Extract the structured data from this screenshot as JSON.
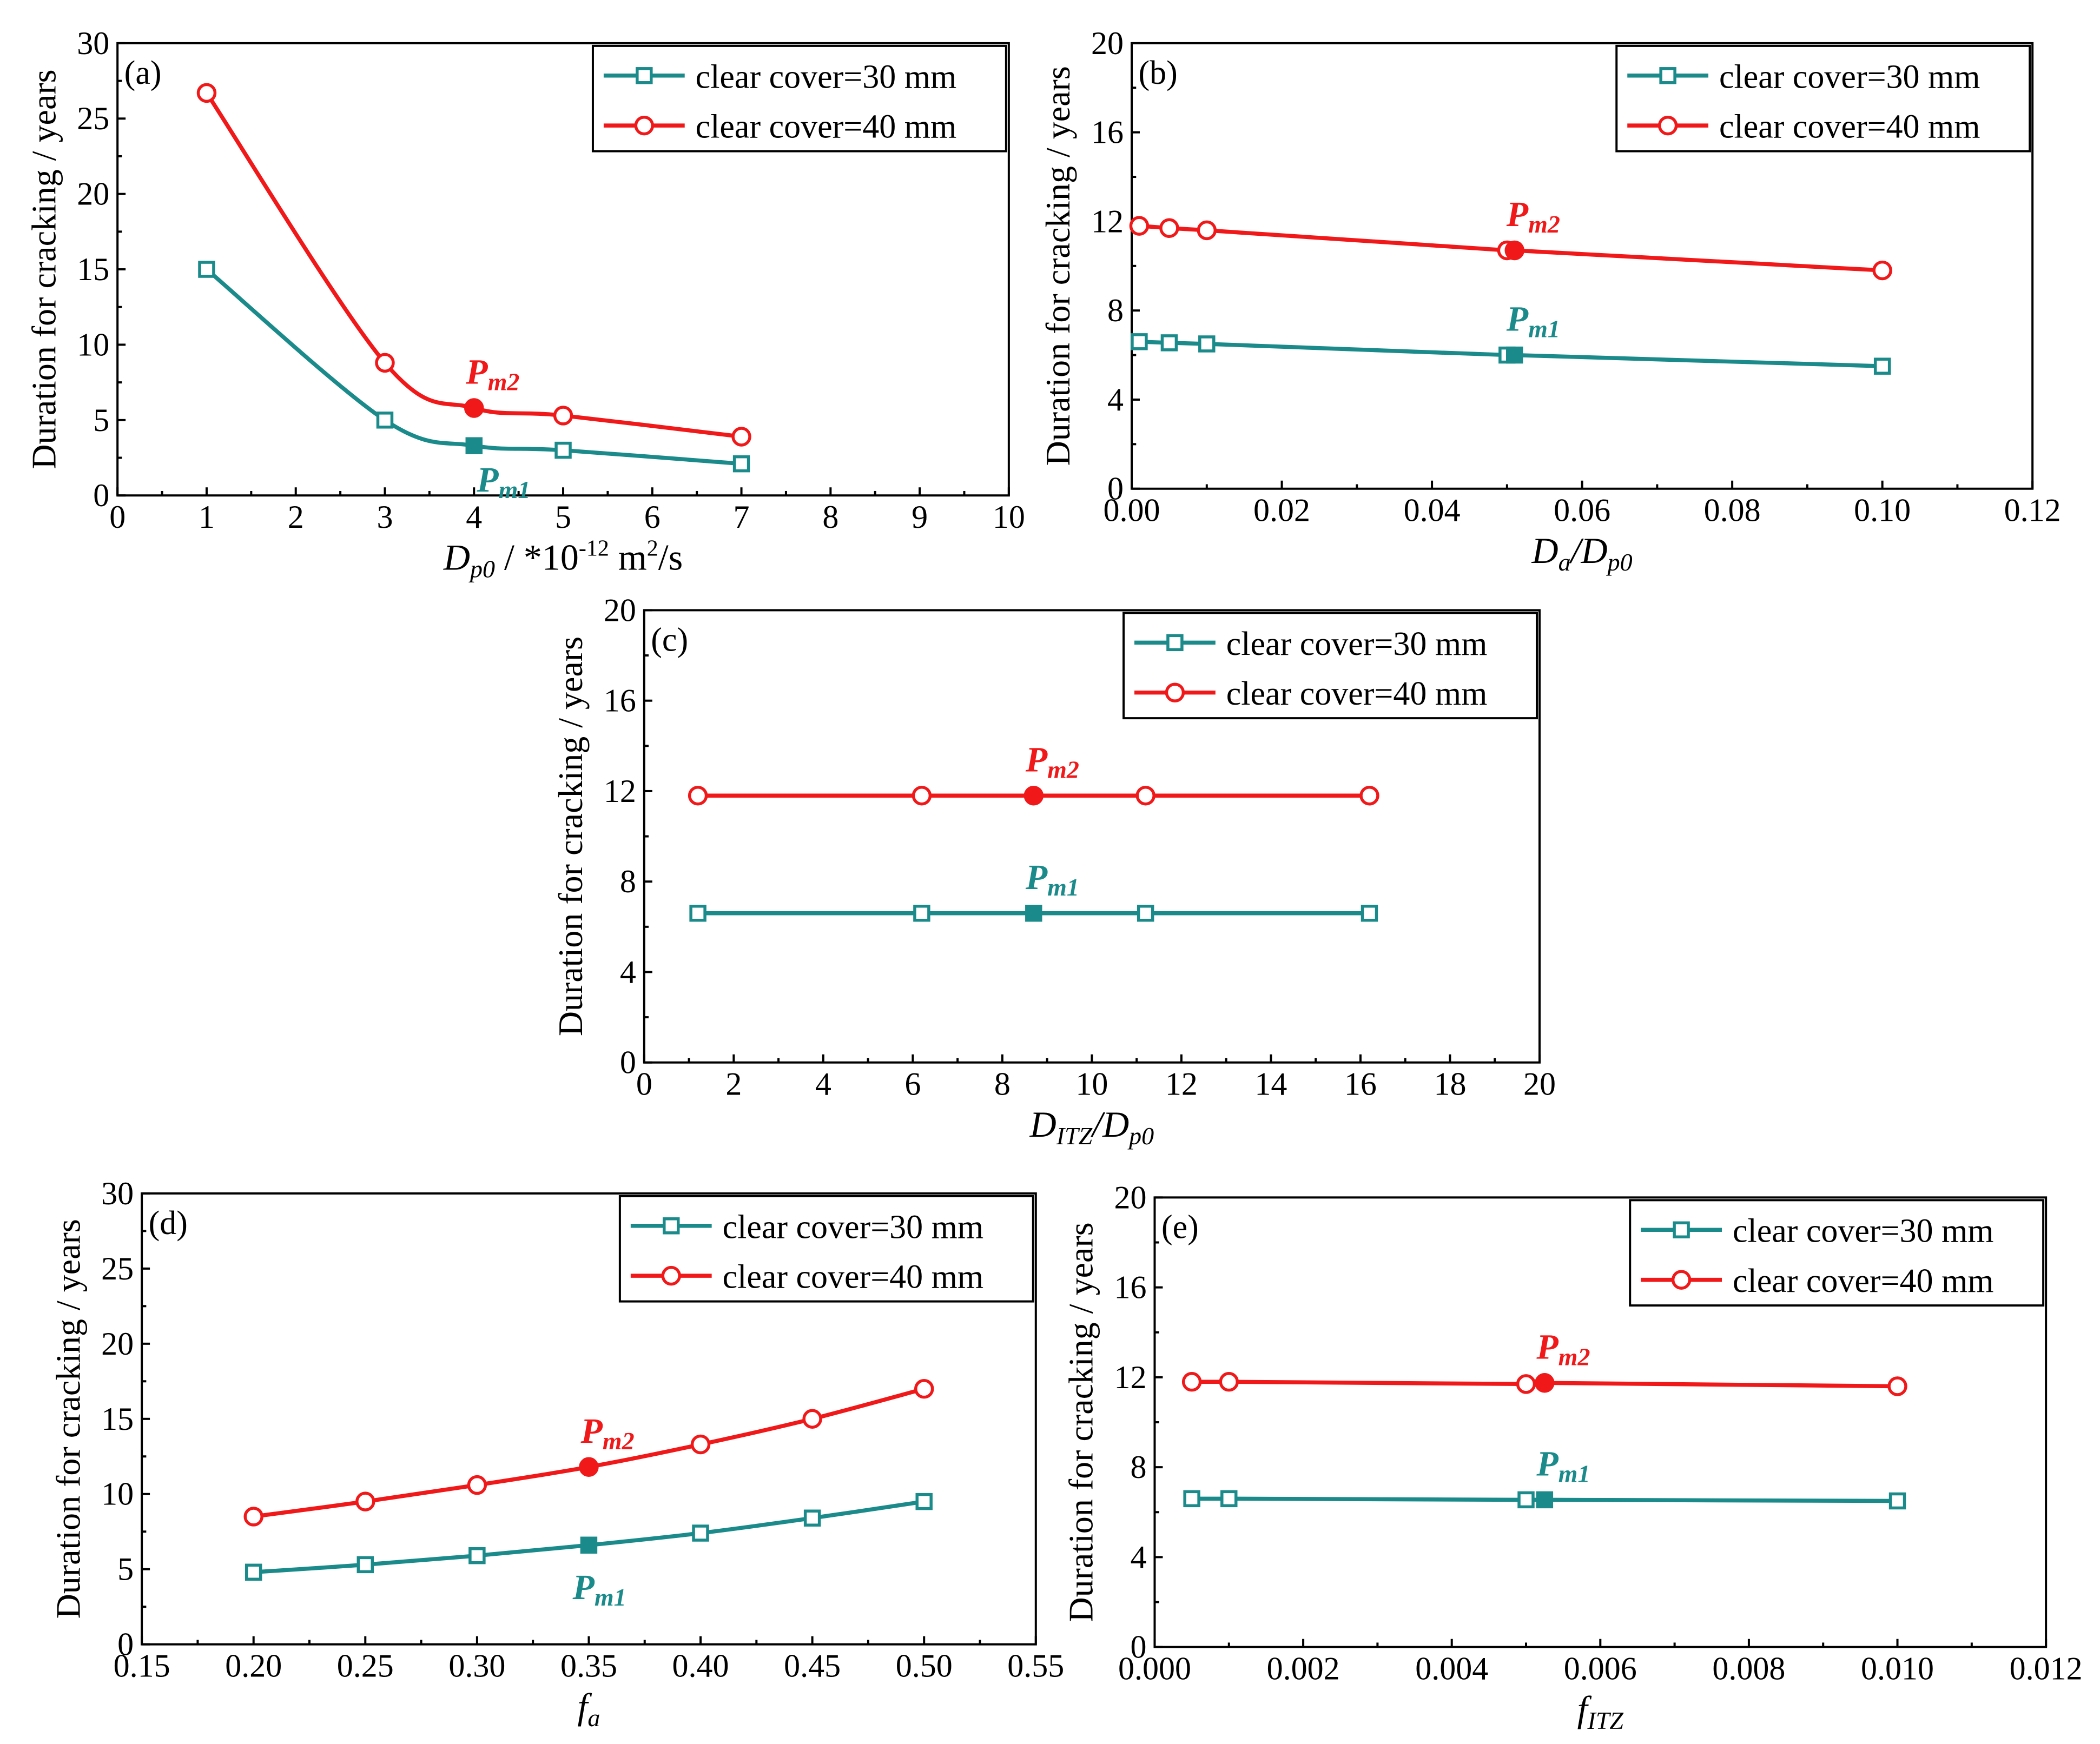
{
  "colors": {
    "teal": "#1a8a8a",
    "red": "#f01818"
  },
  "legend": {
    "s30": "clear cover=30 mm",
    "s40": "clear cover=40 mm"
  },
  "marker_labels": {
    "main": "P",
    "sub1": "m1",
    "sub2": "m2"
  },
  "chart_data": [
    {
      "id": "a",
      "type": "line",
      "smooth": true,
      "panel_label": "(a)",
      "ylabel": "Duration for cracking / years",
      "xlabel": {
        "main": "D",
        "sub": "p0",
        "rest": " / *10",
        "sup": "-12",
        "unit": " m",
        "unit_sup": "2",
        "unit_tail": "/s"
      },
      "xlim": [
        0,
        10
      ],
      "ylim": [
        0,
        30
      ],
      "xticks": [
        0,
        1,
        2,
        3,
        4,
        5,
        6,
        7,
        8,
        9,
        10
      ],
      "yticks": [
        0,
        5,
        10,
        15,
        20,
        25,
        30
      ],
      "xtick_labels": [
        "0",
        "1",
        "2",
        "3",
        "4",
        "5",
        "6",
        "7",
        "8",
        "9",
        "10"
      ],
      "ytick_labels": [
        "0",
        "5",
        "10",
        "15",
        "20",
        "25",
        "30"
      ],
      "series": [
        {
          "name": "clear cover=30 mm",
          "x": [
            1,
            3,
            4,
            5,
            7
          ],
          "y": [
            15.0,
            5.0,
            3.3,
            3.0,
            2.1
          ],
          "highlight": 2
        },
        {
          "name": "clear cover=40 mm",
          "x": [
            1,
            3,
            4,
            5,
            7
          ],
          "y": [
            26.7,
            8.8,
            5.8,
            5.3,
            3.9
          ],
          "highlight": 2
        }
      ]
    },
    {
      "id": "b",
      "type": "line",
      "smooth": false,
      "panel_label": "(b)",
      "ylabel": "Duration for cracking / years",
      "xlabel": {
        "main": "D",
        "sub": "a",
        "rest": "/D",
        "sub2": "p0"
      },
      "xlim": [
        0,
        0.12
      ],
      "ylim": [
        0,
        20
      ],
      "xticks": [
        0,
        0.02,
        0.04,
        0.06,
        0.08,
        0.1,
        0.12
      ],
      "yticks": [
        0,
        4,
        8,
        12,
        16,
        20
      ],
      "xtick_labels": [
        "0.00",
        "0.02",
        "0.04",
        "0.06",
        "0.08",
        "0.10",
        "0.12"
      ],
      "ytick_labels": [
        "0",
        "4",
        "8",
        "12",
        "16",
        "20"
      ],
      "series": [
        {
          "name": "clear cover=30 mm",
          "x": [
            0.001,
            0.005,
            0.01,
            0.05,
            0.051,
            0.1
          ],
          "y": [
            6.6,
            6.55,
            6.5,
            6.0,
            6.0,
            5.5
          ],
          "highlight": 4
        },
        {
          "name": "clear cover=40 mm",
          "x": [
            0.001,
            0.005,
            0.01,
            0.05,
            0.051,
            0.1
          ],
          "y": [
            11.8,
            11.7,
            11.6,
            10.7,
            10.7,
            9.8
          ],
          "highlight": 4
        }
      ]
    },
    {
      "id": "c",
      "type": "line",
      "smooth": false,
      "panel_label": "(c)",
      "ylabel": "Duration for cracking / years",
      "xlabel": {
        "main": "D",
        "sub": "ITZ",
        "rest": "/D",
        "sub2": "p0"
      },
      "xlim": [
        0,
        20
      ],
      "ylim": [
        0,
        20
      ],
      "xticks": [
        0,
        2,
        4,
        6,
        8,
        10,
        12,
        14,
        16,
        18,
        20
      ],
      "yticks": [
        0,
        4,
        8,
        12,
        16,
        20
      ],
      "xtick_labels": [
        "0",
        "2",
        "4",
        "6",
        "8",
        "10",
        "12",
        "14",
        "16",
        "18",
        "20"
      ],
      "ytick_labels": [
        "0",
        "4",
        "8",
        "12",
        "16",
        "20"
      ],
      "series": [
        {
          "name": "clear cover=30 mm",
          "x": [
            1.2,
            6.2,
            8.7,
            11.2,
            16.2
          ],
          "y": [
            6.6,
            6.6,
            6.6,
            6.6,
            6.6
          ],
          "highlight": 2
        },
        {
          "name": "clear cover=40 mm",
          "x": [
            1.2,
            6.2,
            8.7,
            11.2,
            16.2
          ],
          "y": [
            11.8,
            11.8,
            11.8,
            11.8,
            11.8
          ],
          "highlight": 2
        }
      ]
    },
    {
      "id": "d",
      "type": "line",
      "smooth": true,
      "panel_label": "(d)",
      "ylabel": "Duration for cracking / years",
      "xlabel": {
        "main": "f",
        "sub": "a"
      },
      "xlim": [
        0.15,
        0.55
      ],
      "ylim": [
        0,
        30
      ],
      "xticks": [
        0.15,
        0.2,
        0.25,
        0.3,
        0.35,
        0.4,
        0.45,
        0.5,
        0.55
      ],
      "yticks": [
        0,
        5,
        10,
        15,
        20,
        25,
        30
      ],
      "xtick_labels": [
        "0.15",
        "0.20",
        "0.25",
        "0.30",
        "0.35",
        "0.40",
        "0.45",
        "0.50",
        "0.55"
      ],
      "ytick_labels": [
        "0",
        "5",
        "10",
        "15",
        "20",
        "25",
        "30"
      ],
      "series": [
        {
          "name": "clear cover=30 mm",
          "x": [
            0.2,
            0.25,
            0.3,
            0.35,
            0.4,
            0.45,
            0.5
          ],
          "y": [
            4.8,
            5.3,
            5.9,
            6.6,
            7.4,
            8.4,
            9.5
          ],
          "highlight": 3
        },
        {
          "name": "clear cover=40 mm",
          "x": [
            0.2,
            0.25,
            0.3,
            0.35,
            0.4,
            0.45,
            0.5
          ],
          "y": [
            8.5,
            9.5,
            10.6,
            11.8,
            13.3,
            15.0,
            17.0
          ],
          "highlight": 3
        }
      ]
    },
    {
      "id": "e",
      "type": "line",
      "smooth": false,
      "panel_label": "(e)",
      "ylabel": "Duration for cracking / years",
      "xlabel": {
        "main": "f",
        "sub": "ITZ"
      },
      "xlim": [
        0,
        0.012
      ],
      "ylim": [
        0,
        20
      ],
      "xticks": [
        0,
        0.002,
        0.004,
        0.006,
        0.008,
        0.01,
        0.012
      ],
      "yticks": [
        0,
        4,
        8,
        12,
        16,
        20
      ],
      "xtick_labels": [
        "0.000",
        "0.002",
        "0.004",
        "0.006",
        "0.008",
        "0.010",
        "0.012"
      ],
      "ytick_labels": [
        "0",
        "4",
        "8",
        "12",
        "16",
        "20"
      ],
      "series": [
        {
          "name": "clear cover=30 mm",
          "x": [
            0.0005,
            0.001,
            0.005,
            0.00525,
            0.01
          ],
          "y": [
            6.6,
            6.6,
            6.55,
            6.55,
            6.5
          ],
          "highlight": 3
        },
        {
          "name": "clear cover=40 mm",
          "x": [
            0.0005,
            0.001,
            0.005,
            0.00525,
            0.01
          ],
          "y": [
            11.8,
            11.8,
            11.7,
            11.75,
            11.6
          ],
          "highlight": 3
        }
      ]
    }
  ]
}
